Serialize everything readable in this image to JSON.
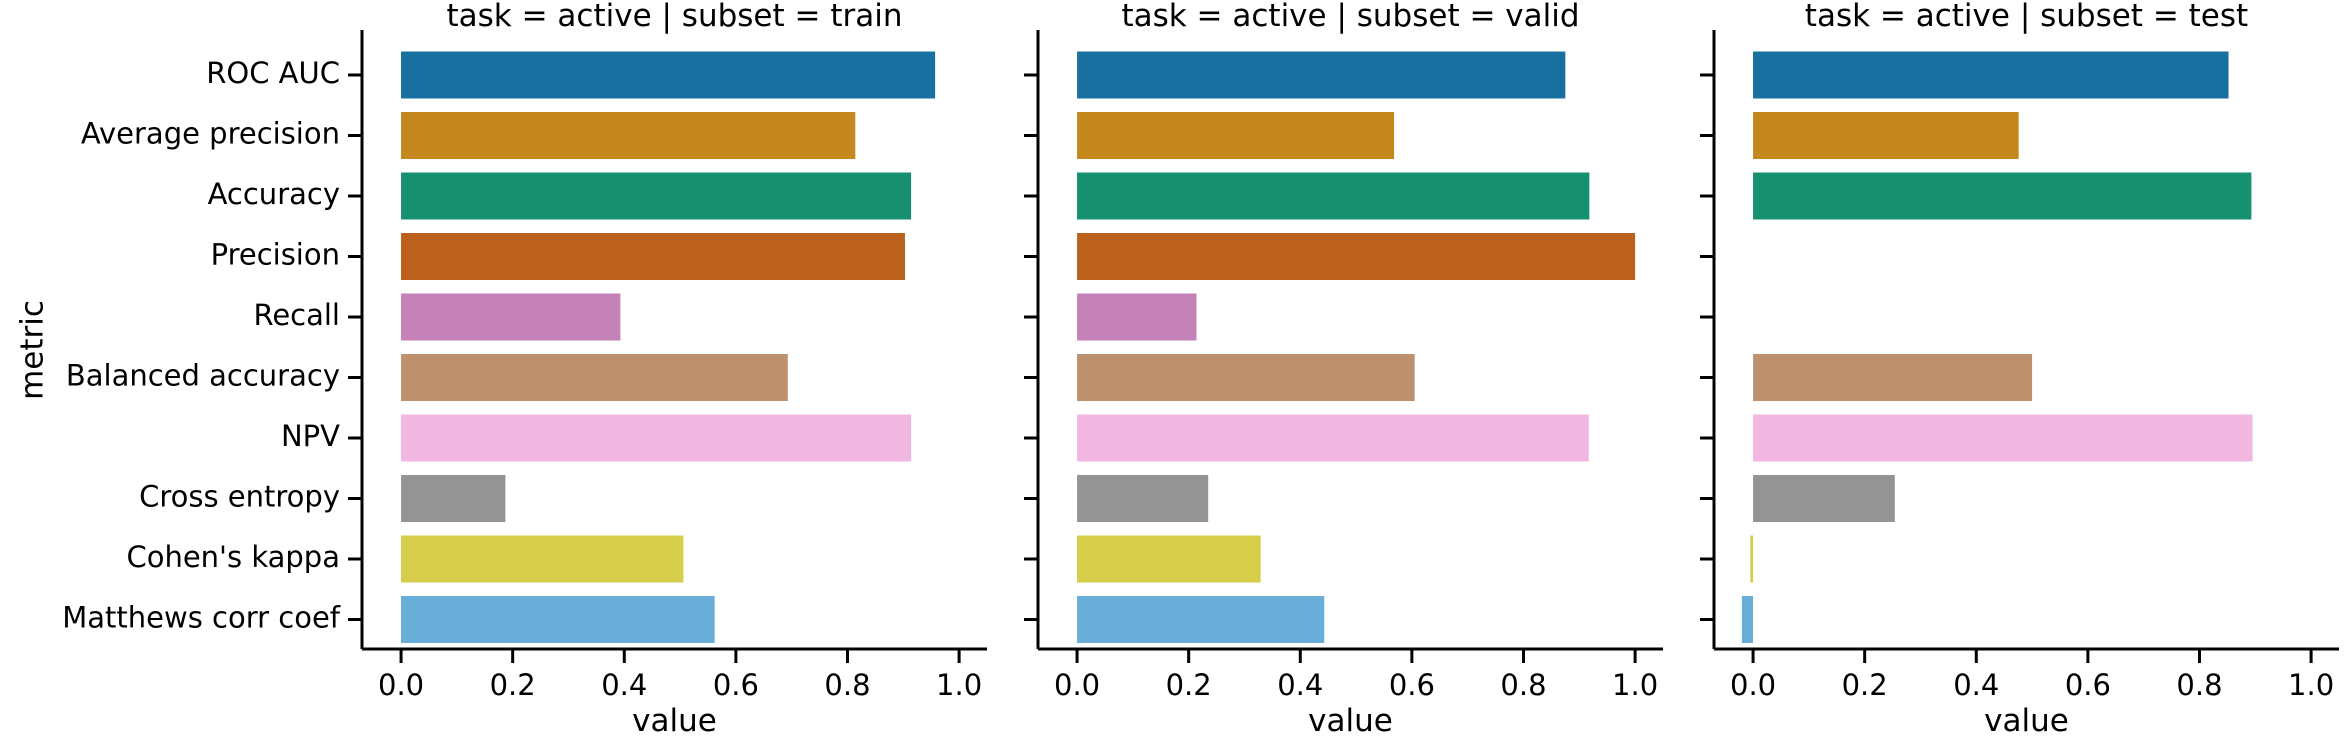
{
  "chart_data": {
    "type": "bar",
    "orientation": "horizontal",
    "ylabel": "metric",
    "xlabel": "value",
    "categories": [
      "ROC AUC",
      "Average precision",
      "Accuracy",
      "Precision",
      "Recall",
      "Balanced accuracy",
      "NPV",
      "Cross entropy",
      "Cohen's kappa",
      "Matthews corr coef"
    ],
    "colors": [
      "#1870a0",
      "#c5881f",
      "#179070",
      "#bb611d",
      "#c582b8",
      "#be916e",
      "#f2b7e0",
      "#949494",
      "#d6cd4b",
      "#68aed8"
    ],
    "xlim": [
      -0.07,
      1.05
    ],
    "xticks": [
      0.0,
      0.2,
      0.4,
      0.6,
      0.8,
      1.0
    ],
    "xtick_labels": [
      "0.0",
      "0.2",
      "0.4",
      "0.6",
      "0.8",
      "1.0"
    ],
    "grid": false,
    "legend": "none",
    "panels": [
      {
        "title": "task = active | subset = train",
        "values": [
          0.957,
          0.814,
          0.914,
          0.903,
          0.393,
          0.693,
          0.914,
          0.187,
          0.506,
          0.562
        ]
      },
      {
        "title": "task = active | subset = valid",
        "values": [
          0.875,
          0.568,
          0.918,
          1.0,
          0.214,
          0.605,
          0.917,
          0.235,
          0.329,
          0.443
        ]
      },
      {
        "title": "task = active | subset = test",
        "values": [
          0.852,
          0.476,
          0.893,
          null,
          null,
          0.5,
          0.895,
          0.254,
          -0.005,
          -0.02
        ]
      }
    ]
  }
}
